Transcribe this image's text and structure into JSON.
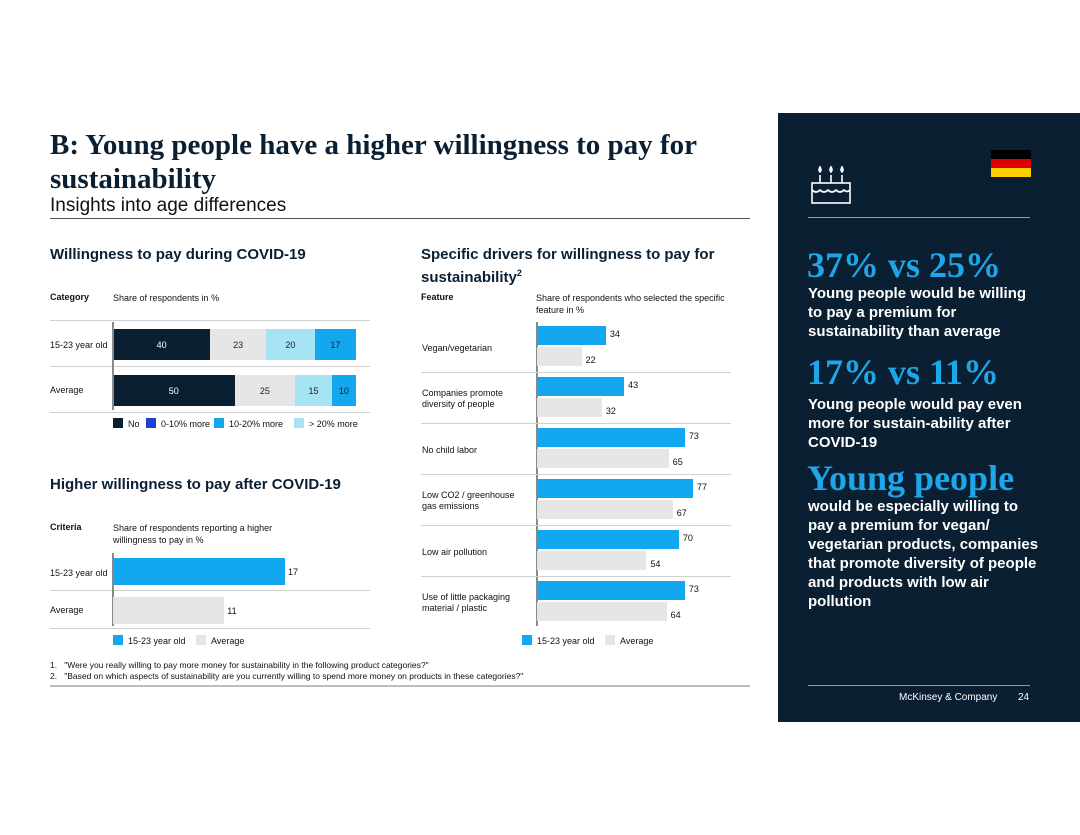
{
  "header": {
    "title": "B: Young people have a higher willingness to pay for sustainability",
    "subtitle": "Insights into age differences"
  },
  "colors": {
    "navy": "#0b1f33",
    "blue": "#1f3fd6",
    "cyan": "#12a7ef",
    "lightblue": "#a6e3f5",
    "grey": "#e6e6e6",
    "accent": "#1ea7e8"
  },
  "chart_data": [
    {
      "type": "bar",
      "stacked": true,
      "orientation": "horizontal",
      "title": "Willingness to pay during COVID-19",
      "col_header_category": "Category",
      "col_header_value": "Share of respondents in %",
      "categories": [
        "15-23 year old",
        "Average"
      ],
      "series": [
        {
          "name": "No",
          "color": "#0b1f33",
          "values": [
            40,
            50
          ]
        },
        {
          "name": "0-10% more",
          "color": "#1f3fd6",
          "values": [
            0,
            0
          ]
        },
        {
          "name": "10-20% more",
          "color": "#12a7ef",
          "values": [
            17,
            10
          ]
        },
        {
          "name": "> 20% more",
          "color": "#a6e3f5",
          "values": [
            20,
            15
          ]
        }
      ],
      "segment_order": [
        {
          "series": "No",
          "text_color": "#ffffff"
        },
        {
          "series": "grey",
          "name": "23/25",
          "color": "#e6e6e6",
          "values": [
            23,
            25
          ],
          "text_color": "#222222"
        },
        {
          "series": "> 20% more",
          "text_color": "#222222"
        },
        {
          "series": "10-20% more",
          "text_color": "#222222"
        }
      ]
    },
    {
      "type": "bar",
      "orientation": "horizontal",
      "title": "Higher willingness to pay after COVID-19",
      "col_header_category": "Criteria",
      "col_header_value": "Share of respondents reporting a higher willingness to pay in %",
      "categories": [
        "15-23 year old",
        "Average"
      ],
      "values": [
        17,
        11
      ],
      "colors": [
        "#12a7ef",
        "#e6e6e6"
      ],
      "legend": [
        "15-23 year old",
        "Average"
      ]
    },
    {
      "type": "bar",
      "orientation": "horizontal",
      "title": "Specific drivers for willingness to pay for sustainability",
      "title_sup": "2",
      "col_header_category": "Feature",
      "col_header_value": "Share of respondents who selected the specific feature in %",
      "categories": [
        "Vegan/vegetarian",
        "Companies promote diversity of people",
        "No child labor",
        "Low CO2 / greenhouse gas emissions",
        "Low air pollution",
        "Use of little packaging material / plastic"
      ],
      "series": [
        {
          "name": "15-23 year old",
          "color": "#12a7ef",
          "values": [
            34,
            43,
            73,
            77,
            70,
            73
          ]
        },
        {
          "name": "Average",
          "color": "#e6e6e6",
          "values": [
            22,
            32,
            65,
            67,
            54,
            64
          ]
        }
      ]
    }
  ],
  "legend1": [
    "No",
    "0-10% more",
    "10-20% more",
    "> 20% more"
  ],
  "legend2": [
    "15-23 year old",
    "Average"
  ],
  "legend3": [
    "15-23 year old",
    "Average"
  ],
  "footnotes": [
    {
      "num": "1.",
      "text": "\"Were you really willing to pay more money for sustainability in the following product categories?\""
    },
    {
      "num": "2.",
      "text": "\"Based on which aspects of sustainability are you currently willing to spend more money on products in these categories?\""
    }
  ],
  "panel": {
    "stat1": "37% vs 25%",
    "text1": "Young people would be willing to pay a premium for sustainability than average",
    "stat2": "17% vs 11%",
    "text2": "Young people would pay even more for sustain-ability after COVID-19",
    "stat3": "Young people",
    "text3": "would be especially willing to pay a premium for vegan/ vegetarian products, companies that promote diversity of people and products with low air pollution",
    "company": "McKinsey & Company",
    "page": "24"
  },
  "icons": {
    "cake": "birthday-cake-icon",
    "flag": "germany-flag-icon"
  }
}
